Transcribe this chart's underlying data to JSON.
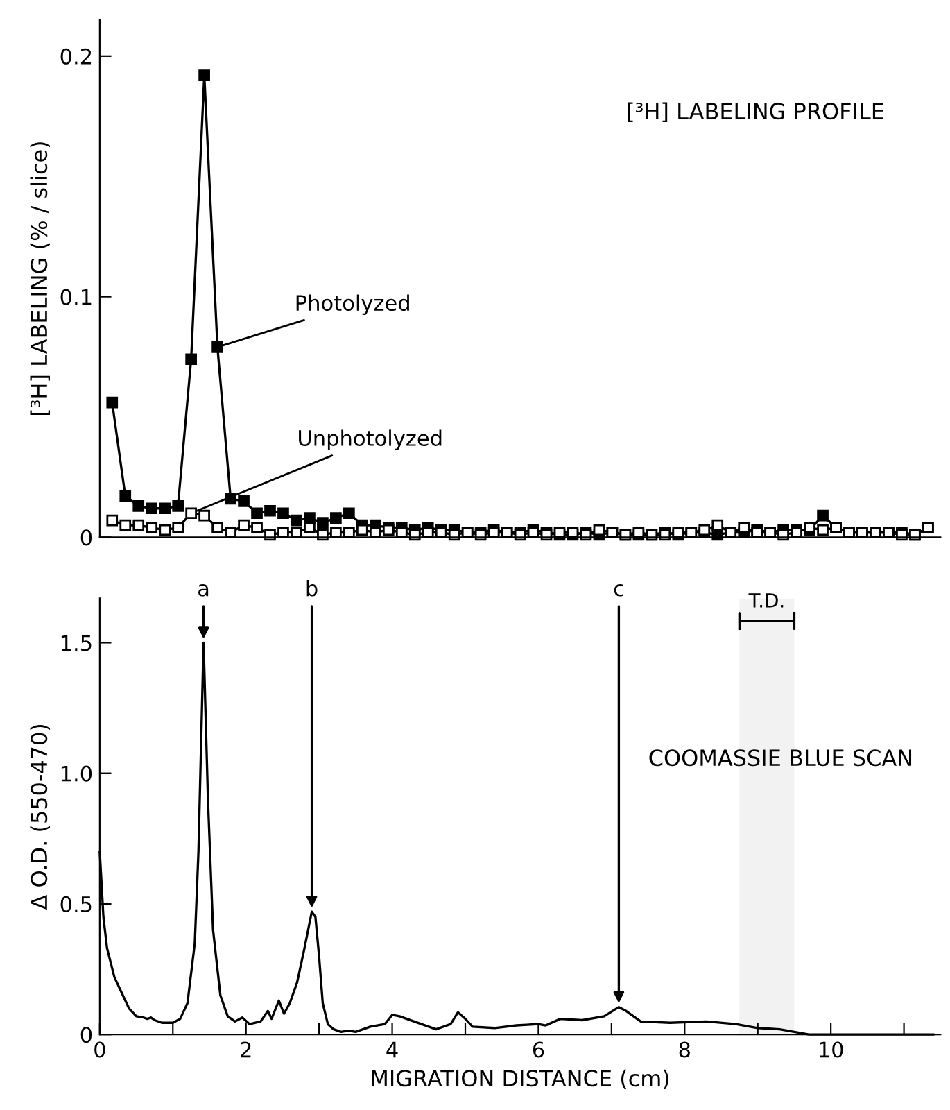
{
  "chart_data": [
    {
      "type": "line",
      "title": "[³H] LABELING PROFILE",
      "ylabel": "[³H] LABELING (% / slice)",
      "xlim": [
        0,
        11.5
      ],
      "ylim": [
        0,
        0.215
      ],
      "yticks": [
        0,
        0.1,
        0.2
      ],
      "tick_labels": "y",
      "marker": "square",
      "grid": false,
      "legend": false,
      "series": [
        {
          "name": "Photolyzed",
          "color": "#000000",
          "x": [
            0.17,
            0.35,
            0.53,
            0.71,
            0.89,
            1.07,
            1.25,
            1.43,
            1.61,
            1.79,
            1.97,
            2.15,
            2.33,
            2.51,
            2.69,
            2.87,
            3.05,
            3.23,
            3.41,
            3.59,
            3.77,
            3.95,
            4.13,
            4.31,
            4.49,
            4.67,
            4.85,
            5.03,
            5.21,
            5.39,
            5.57,
            5.75,
            5.93,
            6.11,
            6.29,
            6.47,
            6.65,
            6.83,
            7.01,
            7.19,
            7.37,
            7.55,
            7.73,
            7.91,
            8.09,
            8.27,
            8.45,
            8.63,
            8.81,
            8.99,
            9.17,
            9.35,
            9.53,
            9.71,
            9.89,
            10.07,
            10.25,
            10.43,
            10.61,
            10.79,
            10.97,
            11.15,
            11.33
          ],
          "values": [
            0.056,
            0.017,
            0.013,
            0.012,
            0.012,
            0.013,
            0.074,
            0.192,
            0.079,
            0.016,
            0.015,
            0.01,
            0.011,
            0.01,
            0.007,
            0.008,
            0.006,
            0.008,
            0.01,
            0.005,
            0.005,
            0.004,
            0.004,
            0.003,
            0.004,
            0.003,
            0.003,
            0.002,
            0.002,
            0.003,
            0.002,
            0.002,
            0.003,
            0.002,
            0.001,
            0.001,
            0.002,
            0.001,
            0.002,
            0.001,
            0.001,
            0.001,
            0.002,
            0.001,
            0.002,
            0.002,
            0.001,
            0.002,
            0.002,
            0.003,
            0.002,
            0.003,
            0.003,
            0.003,
            0.009,
            0.004,
            0.002,
            0.002,
            0.002,
            0.002,
            0.002,
            0.001,
            0.004
          ]
        },
        {
          "name": "Unphotolyzed",
          "color": "#000000",
          "x": [
            0.17,
            0.35,
            0.53,
            0.71,
            0.89,
            1.07,
            1.25,
            1.43,
            1.61,
            1.79,
            1.97,
            2.15,
            2.33,
            2.51,
            2.69,
            2.87,
            3.05,
            3.23,
            3.41,
            3.59,
            3.77,
            3.95,
            4.13,
            4.31,
            4.49,
            4.67,
            4.85,
            5.03,
            5.21,
            5.39,
            5.57,
            5.75,
            5.93,
            6.11,
            6.29,
            6.47,
            6.65,
            6.83,
            7.01,
            7.19,
            7.37,
            7.55,
            7.73,
            7.91,
            8.09,
            8.27,
            8.45,
            8.63,
            8.81,
            8.99,
            9.17,
            9.35,
            9.53,
            9.71,
            9.89,
            10.07,
            10.25,
            10.43,
            10.61,
            10.79,
            10.97,
            11.15,
            11.33
          ],
          "values": [
            0.007,
            0.005,
            0.005,
            0.004,
            0.003,
            0.004,
            0.01,
            0.009,
            0.004,
            0.002,
            0.005,
            0.004,
            0.001,
            0.002,
            0.002,
            0.004,
            0.001,
            0.002,
            0.002,
            0.003,
            0.002,
            0.003,
            0.002,
            0.001,
            0.002,
            0.002,
            0.001,
            0.002,
            0.001,
            0.002,
            0.002,
            0.001,
            0.002,
            0.001,
            0.002,
            0.002,
            0.001,
            0.003,
            0.002,
            0.001,
            0.002,
            0.001,
            0.001,
            0.002,
            0.002,
            0.003,
            0.005,
            0.002,
            0.004,
            0.002,
            0.002,
            0.001,
            0.002,
            0.004,
            0.003,
            0.004,
            0.002,
            0.002,
            0.002,
            0.002,
            0.001,
            0.001,
            0.004
          ]
        }
      ]
    },
    {
      "type": "line",
      "title": "COOMASSIE BLUE SCAN",
      "ylabel": "Δ O.D. (550-470)",
      "xlabel": "MIGRATION DISTANCE (cm)",
      "xlim": [
        0,
        11.5
      ],
      "ylim": [
        0,
        1.67
      ],
      "xticks": [
        0,
        {
          "value": 1,
          "label": null
        },
        2,
        {
          "value": 3,
          "label": null
        },
        4,
        {
          "value": 5,
          "label": null
        },
        6,
        {
          "value": 7,
          "label": null
        },
        8,
        {
          "value": 9,
          "label": null
        },
        10,
        {
          "value": 11,
          "label": null
        }
      ],
      "yticks": [
        0,
        0.5,
        {
          "value": 1,
          "label": "1.0"
        },
        1.5
      ],
      "marker": "none",
      "grid": false,
      "legend": false,
      "annotations": [
        {
          "text": "a",
          "x": 1.42,
          "y": 1.5
        },
        {
          "text": "b",
          "x": 2.9,
          "y": 0.47
        },
        {
          "text": "c",
          "x": 7.1,
          "y": 0.105
        }
      ],
      "bands": [
        {
          "axis": "x",
          "from": 8.75,
          "to": 9.5,
          "label": "T.D."
        }
      ],
      "series": [
        {
          "color": "#000000",
          "x": [
            0.0,
            0.02,
            0.05,
            0.1,
            0.2,
            0.3,
            0.4,
            0.5,
            0.6,
            0.65,
            0.7,
            0.75,
            0.85,
            1.0,
            1.1,
            1.2,
            1.3,
            1.35,
            1.42,
            1.48,
            1.55,
            1.65,
            1.75,
            1.85,
            1.95,
            2.05,
            2.2,
            2.3,
            2.35,
            2.45,
            2.52,
            2.6,
            2.7,
            2.8,
            2.9,
            2.95,
            3.0,
            3.05,
            3.12,
            3.2,
            3.3,
            3.4,
            3.5,
            3.7,
            3.9,
            4.0,
            4.1,
            4.3,
            4.6,
            4.8,
            4.9,
            5.0,
            5.1,
            5.4,
            5.7,
            6.0,
            6.1,
            6.3,
            6.6,
            6.9,
            7.1,
            7.2,
            7.4,
            7.8,
            8.3,
            8.7,
            9.0,
            9.3,
            9.5,
            9.7,
            10.5,
            11.4
          ],
          "values": [
            0.7,
            0.6,
            0.45,
            0.33,
            0.22,
            0.16,
            0.1,
            0.07,
            0.065,
            0.06,
            0.065,
            0.055,
            0.045,
            0.045,
            0.06,
            0.12,
            0.35,
            0.7,
            1.5,
            0.9,
            0.4,
            0.15,
            0.07,
            0.05,
            0.065,
            0.04,
            0.05,
            0.09,
            0.06,
            0.13,
            0.08,
            0.12,
            0.2,
            0.33,
            0.47,
            0.45,
            0.3,
            0.12,
            0.04,
            0.02,
            0.01,
            0.015,
            0.01,
            0.03,
            0.04,
            0.075,
            0.07,
            0.05,
            0.02,
            0.04,
            0.085,
            0.06,
            0.03,
            0.025,
            0.035,
            0.04,
            0.035,
            0.06,
            0.055,
            0.07,
            0.105,
            0.09,
            0.05,
            0.045,
            0.05,
            0.04,
            0.025,
            0.02,
            0.01,
            0.0,
            0.0,
            0.0
          ]
        }
      ]
    }
  ]
}
